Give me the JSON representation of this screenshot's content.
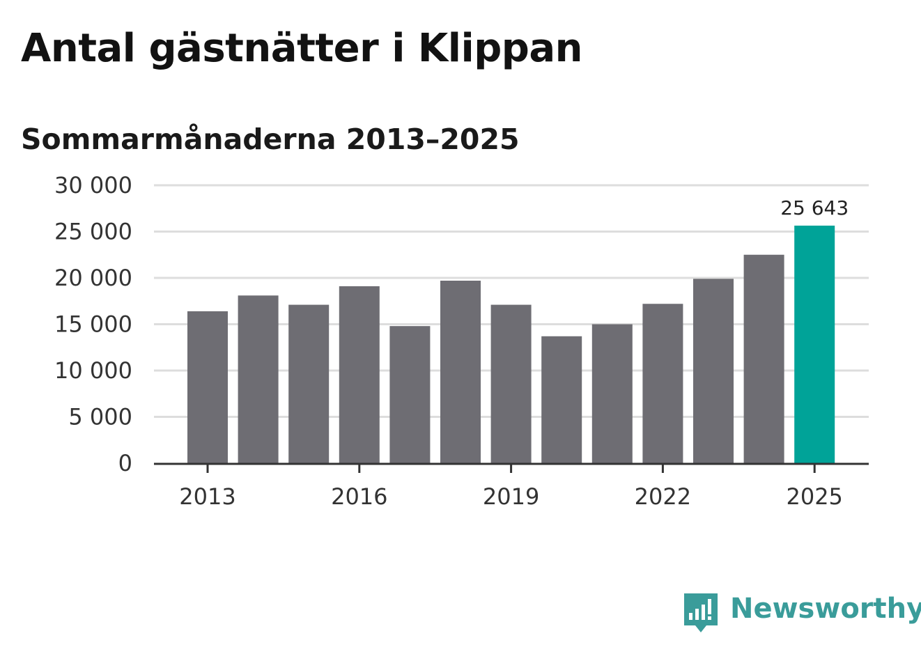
{
  "header": {
    "title": "Antal gästnätter i Klippan",
    "subtitle": "Sommarmånaderna 2013–2025"
  },
  "brand": {
    "name": "Newsworthy",
    "color": "#3a9c9a"
  },
  "chart_data": {
    "type": "bar",
    "categories": [
      "2013",
      "2014",
      "2015",
      "2016",
      "2017",
      "2018",
      "2019",
      "2020",
      "2021",
      "2022",
      "2023",
      "2024",
      "2025"
    ],
    "values": [
      16400,
      18100,
      17100,
      19100,
      14800,
      19700,
      17100,
      13700,
      15000,
      17200,
      19900,
      22500,
      25643
    ],
    "highlight_index": 12,
    "highlight_label": "25 643",
    "x_tick_labels": [
      "2013",
      "2016",
      "2019",
      "2022",
      "2025"
    ],
    "y_ticks": [
      0,
      5000,
      10000,
      15000,
      20000,
      25000,
      30000
    ],
    "y_tick_labels": [
      "0",
      "5 000",
      "10 000",
      "15 000",
      "20 000",
      "25 000",
      "30 000"
    ],
    "ylim": [
      0,
      30000
    ],
    "grid": true,
    "colors": {
      "bar": "#6e6d73",
      "highlight": "#00a398",
      "grid": "#dddddd",
      "axis": "#333333"
    }
  }
}
